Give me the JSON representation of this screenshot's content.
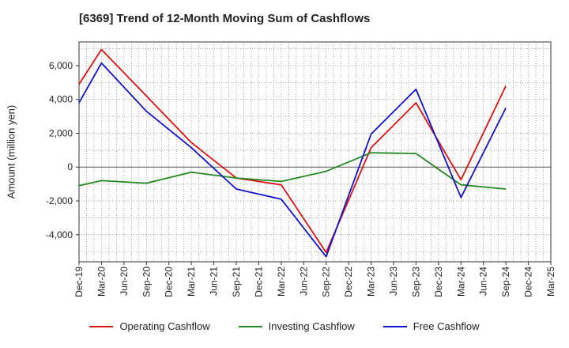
{
  "chart_data": {
    "type": "line",
    "title": "[6369]  Trend of 12-Month Moving Sum of Cashflows",
    "ylabel": "Amount (million yen)",
    "xlabel": "",
    "x": [
      "Dec-19",
      "Mar-20",
      "Jun-20",
      "Sep-20",
      "Dec-20",
      "Mar-21",
      "Jun-21",
      "Sep-21",
      "Dec-21",
      "Mar-22",
      "Jun-22",
      "Sep-22",
      "Dec-22",
      "Mar-23",
      "Jun-23",
      "Sep-23",
      "Dec-23",
      "Mar-24",
      "Jun-24",
      "Sep-24",
      "Dec-24",
      "Mar-25"
    ],
    "ylim": [
      -5600,
      7400
    ],
    "yticks": [
      -4000,
      -2000,
      0,
      2000,
      4000,
      6000
    ],
    "ytick_labels": [
      "-4,000",
      "-2,000",
      "0",
      "2,000",
      "4,000",
      "6,000"
    ],
    "grid": true,
    "legend_position": "bottom",
    "series": [
      {
        "name": "Operating Cashflow",
        "color": "#dd1111",
        "points": [
          [
            0,
            4900
          ],
          [
            1,
            6950
          ],
          [
            3,
            4200
          ],
          [
            5,
            1450
          ],
          [
            7,
            -650
          ],
          [
            9,
            -1050
          ],
          [
            11,
            -5050
          ],
          [
            13,
            1150
          ],
          [
            15,
            3800
          ],
          [
            17,
            -750
          ],
          [
            19,
            4800
          ]
        ]
      },
      {
        "name": "Investing Cashflow",
        "color": "#228822",
        "points": [
          [
            0,
            -1100
          ],
          [
            1,
            -800
          ],
          [
            3,
            -950
          ],
          [
            5,
            -300
          ],
          [
            7,
            -650
          ],
          [
            9,
            -850
          ],
          [
            11,
            -250
          ],
          [
            13,
            850
          ],
          [
            15,
            800
          ],
          [
            17,
            -1050
          ],
          [
            19,
            -1300
          ]
        ]
      },
      {
        "name": "Free Cashflow",
        "color": "#1111cc",
        "points": [
          [
            0,
            3800
          ],
          [
            1,
            6150
          ],
          [
            3,
            3300
          ],
          [
            5,
            1150
          ],
          [
            7,
            -1300
          ],
          [
            9,
            -1900
          ],
          [
            11,
            -5300
          ],
          [
            13,
            1950
          ],
          [
            15,
            4600
          ],
          [
            17,
            -1800
          ],
          [
            19,
            3500
          ]
        ]
      }
    ]
  }
}
